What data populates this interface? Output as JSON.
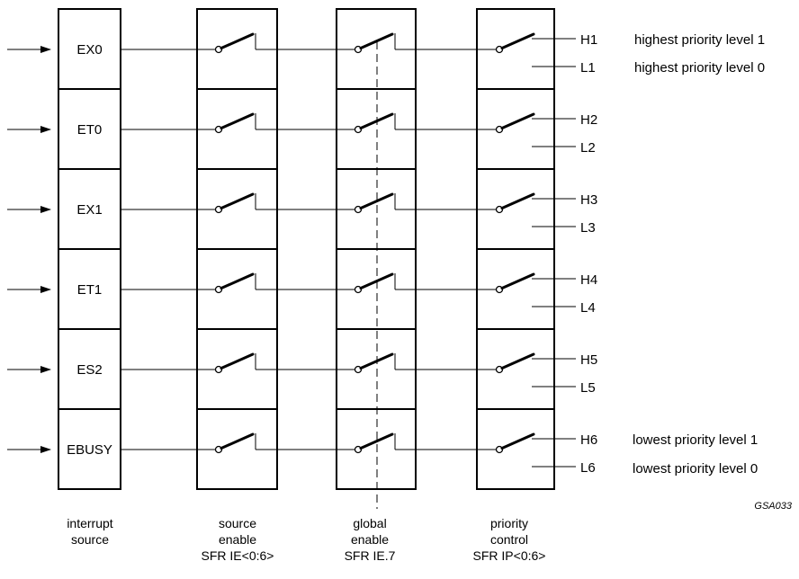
{
  "sources": [
    "EX0",
    "ET0",
    "EX1",
    "ET1",
    "ES2",
    "EBUSY"
  ],
  "high_outputs": [
    "H1",
    "H2",
    "H3",
    "H4",
    "H5",
    "H6"
  ],
  "low_outputs": [
    "L1",
    "L2",
    "L3",
    "L4",
    "L5",
    "L6"
  ],
  "level_notes": {
    "first_high": "highest priority level 1",
    "first_low": "highest priority level 0",
    "last_high": "lowest priority level 1",
    "last_low": "lowest priority level 0"
  },
  "figure_code": "GSA033",
  "column_captions": {
    "interrupt_source": [
      "interrupt",
      "source"
    ],
    "source_enable": [
      "source",
      "enable",
      "SFR IE<0:6>"
    ],
    "global_enable": [
      "global",
      "enable",
      "SFR IE.7"
    ],
    "priority_control": [
      "priority",
      "control",
      "SFR IP<0:6>"
    ]
  },
  "colors": {
    "ink": "#000000",
    "background": "#ffffff"
  }
}
